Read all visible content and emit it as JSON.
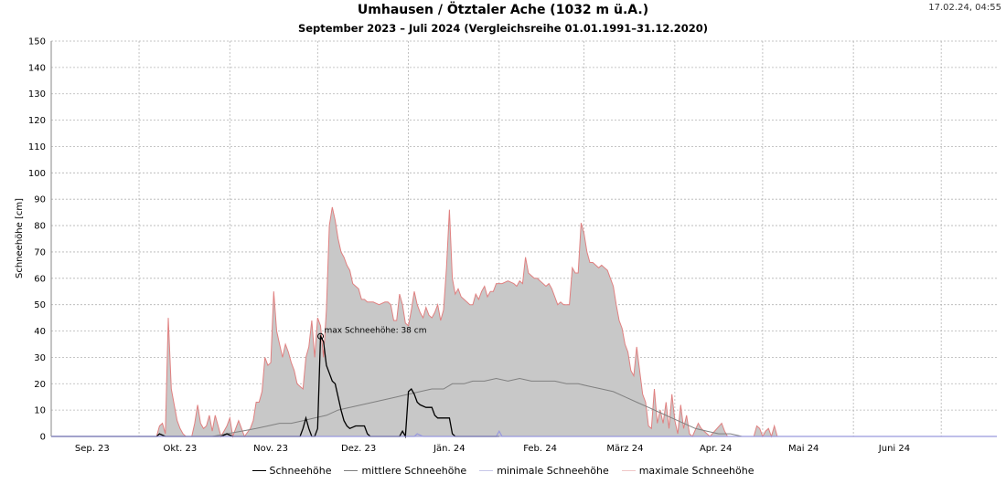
{
  "header": {
    "title": "Umhausen / Ötztaler Ache (1032 m ü.A.)",
    "subtitle": "September 2023 – Juli 2024 (Vergleichsreihe 01.01.1991–31.12.2020)",
    "timestamp": "17.02.24, 04:55"
  },
  "chart_data": {
    "type": "area",
    "ylabel": "Schneehöhe [cm]",
    "ylim": [
      0,
      150
    ],
    "yticks": [
      0,
      10,
      20,
      30,
      40,
      50,
      60,
      70,
      80,
      90,
      100,
      110,
      120,
      130,
      140,
      150
    ],
    "xlim_days": [
      0,
      323
    ],
    "xticks": [
      {
        "day": 14,
        "label": "Sep. 23"
      },
      {
        "day": 44,
        "label": "Okt. 23"
      },
      {
        "day": 75,
        "label": "Nov. 23"
      },
      {
        "day": 105,
        "label": "Dez. 23"
      },
      {
        "day": 136,
        "label": "Jän. 24"
      },
      {
        "day": 167,
        "label": "Feb. 24"
      },
      {
        "day": 196,
        "label": "März 24"
      },
      {
        "day": 227,
        "label": "Apr. 24"
      },
      {
        "day": 257,
        "label": "Mai 24"
      },
      {
        "day": 288,
        "label": "Juni 24"
      }
    ],
    "grid": true,
    "legend_position": "bottom",
    "annotation": {
      "day": 92,
      "value": 38,
      "text": "max Schneehöhe: 38 cm"
    },
    "colors": {
      "schneehoehe": "#000000",
      "mittlere": "#808080",
      "minimale": "#9999dd",
      "maximale": "#e08080",
      "area_fill": "#c8c8c8"
    },
    "series": [
      {
        "name": "Schneehöhe",
        "points": [
          [
            0,
            0
          ],
          [
            36,
            0
          ],
          [
            37,
            1
          ],
          [
            39,
            0
          ],
          [
            58,
            0
          ],
          [
            60,
            1
          ],
          [
            62,
            0
          ],
          [
            85,
            0
          ],
          [
            86,
            3
          ],
          [
            87,
            7
          ],
          [
            88,
            3
          ],
          [
            89,
            0
          ],
          [
            90,
            0
          ],
          [
            91,
            3
          ],
          [
            92,
            38
          ],
          [
            93,
            36
          ],
          [
            94,
            27
          ],
          [
            95,
            24
          ],
          [
            96,
            21
          ],
          [
            97,
            20
          ],
          [
            98,
            15
          ],
          [
            99,
            10
          ],
          [
            100,
            6
          ],
          [
            101,
            4
          ],
          [
            102,
            3
          ],
          [
            104,
            4
          ],
          [
            106,
            4
          ],
          [
            107,
            4
          ],
          [
            108,
            1
          ],
          [
            109,
            0
          ],
          [
            119,
            0
          ],
          [
            120,
            2
          ],
          [
            121,
            0
          ],
          [
            122,
            17
          ],
          [
            123,
            18
          ],
          [
            124,
            16
          ],
          [
            125,
            13
          ],
          [
            126,
            12
          ],
          [
            128,
            11
          ],
          [
            130,
            11
          ],
          [
            131,
            8
          ],
          [
            132,
            7
          ],
          [
            136,
            7
          ],
          [
            137,
            1
          ],
          [
            138,
            0
          ],
          [
            153,
            0
          ]
        ]
      },
      {
        "name": "mittlere Schneehöhe",
        "points": [
          [
            0,
            0
          ],
          [
            55,
            0
          ],
          [
            60,
            1
          ],
          [
            65,
            2
          ],
          [
            70,
            3
          ],
          [
            74,
            4
          ],
          [
            78,
            5
          ],
          [
            82,
            5
          ],
          [
            86,
            6
          ],
          [
            90,
            7
          ],
          [
            94,
            8
          ],
          [
            98,
            10
          ],
          [
            102,
            11
          ],
          [
            106,
            12
          ],
          [
            110,
            13
          ],
          [
            114,
            14
          ],
          [
            118,
            15
          ],
          [
            122,
            16
          ],
          [
            126,
            17
          ],
          [
            130,
            18
          ],
          [
            134,
            18
          ],
          [
            137,
            20
          ],
          [
            141,
            20
          ],
          [
            144,
            21
          ],
          [
            148,
            21
          ],
          [
            152,
            22
          ],
          [
            156,
            21
          ],
          [
            160,
            22
          ],
          [
            164,
            21
          ],
          [
            168,
            21
          ],
          [
            172,
            21
          ],
          [
            176,
            20
          ],
          [
            180,
            20
          ],
          [
            184,
            19
          ],
          [
            188,
            18
          ],
          [
            192,
            17
          ],
          [
            196,
            15
          ],
          [
            200,
            13
          ],
          [
            204,
            11
          ],
          [
            208,
            9
          ],
          [
            212,
            7
          ],
          [
            216,
            5
          ],
          [
            220,
            3
          ],
          [
            224,
            2
          ],
          [
            228,
            1
          ],
          [
            232,
            1
          ],
          [
            236,
            0
          ],
          [
            323,
            0
          ]
        ]
      },
      {
        "name": "minimale Schneehöhe",
        "points": [
          [
            0,
            0
          ],
          [
            124,
            0
          ],
          [
            125,
            1
          ],
          [
            127,
            0
          ],
          [
            152,
            0
          ],
          [
            153,
            2
          ],
          [
            154,
            0
          ],
          [
            323,
            0
          ]
        ]
      },
      {
        "name": "maximale Schneehöhe",
        "points": [
          [
            0,
            0
          ],
          [
            36,
            0
          ],
          [
            37,
            4
          ],
          [
            38,
            5
          ],
          [
            39,
            1
          ],
          [
            40,
            45
          ],
          [
            41,
            18
          ],
          [
            42,
            12
          ],
          [
            43,
            6
          ],
          [
            44,
            3
          ],
          [
            45,
            1
          ],
          [
            46,
            0
          ],
          [
            48,
            0
          ],
          [
            49,
            5
          ],
          [
            50,
            12
          ],
          [
            51,
            5
          ],
          [
            52,
            3
          ],
          [
            53,
            4
          ],
          [
            54,
            8
          ],
          [
            55,
            2
          ],
          [
            56,
            8
          ],
          [
            57,
            4
          ],
          [
            58,
            0
          ],
          [
            60,
            4
          ],
          [
            61,
            7
          ],
          [
            62,
            0
          ],
          [
            64,
            6
          ],
          [
            65,
            3
          ],
          [
            66,
            0
          ],
          [
            68,
            3
          ],
          [
            69,
            6
          ],
          [
            70,
            13
          ],
          [
            71,
            13
          ],
          [
            72,
            17
          ],
          [
            73,
            30
          ],
          [
            74,
            27
          ],
          [
            75,
            28
          ],
          [
            76,
            55
          ],
          [
            77,
            40
          ],
          [
            78,
            35
          ],
          [
            79,
            30
          ],
          [
            80,
            35
          ],
          [
            81,
            32
          ],
          [
            82,
            28
          ],
          [
            83,
            25
          ],
          [
            84,
            20
          ],
          [
            85,
            19
          ],
          [
            86,
            18
          ],
          [
            87,
            30
          ],
          [
            88,
            34
          ],
          [
            89,
            44
          ],
          [
            90,
            30
          ],
          [
            91,
            45
          ],
          [
            92,
            42
          ],
          [
            93,
            30
          ],
          [
            94,
            48
          ],
          [
            95,
            80
          ],
          [
            96,
            87
          ],
          [
            97,
            82
          ],
          [
            98,
            75
          ],
          [
            99,
            70
          ],
          [
            100,
            68
          ],
          [
            101,
            65
          ],
          [
            102,
            63
          ],
          [
            103,
            58
          ],
          [
            104,
            57
          ],
          [
            105,
            56
          ],
          [
            106,
            52
          ],
          [
            107,
            52
          ],
          [
            108,
            51
          ],
          [
            110,
            51
          ],
          [
            112,
            50
          ],
          [
            114,
            51
          ],
          [
            115,
            51
          ],
          [
            116,
            50
          ],
          [
            117,
            44
          ],
          [
            118,
            44
          ],
          [
            119,
            54
          ],
          [
            120,
            50
          ],
          [
            121,
            43
          ],
          [
            122,
            42
          ],
          [
            123,
            48
          ],
          [
            124,
            55
          ],
          [
            125,
            50
          ],
          [
            126,
            47
          ],
          [
            127,
            45
          ],
          [
            128,
            49
          ],
          [
            129,
            46
          ],
          [
            130,
            45
          ],
          [
            131,
            47
          ],
          [
            132,
            50
          ],
          [
            133,
            44
          ],
          [
            134,
            48
          ],
          [
            135,
            64
          ],
          [
            136,
            86
          ],
          [
            137,
            60
          ],
          [
            138,
            54
          ],
          [
            139,
            56
          ],
          [
            140,
            53
          ],
          [
            141,
            52
          ],
          [
            142,
            51
          ],
          [
            143,
            50
          ],
          [
            144,
            50
          ],
          [
            145,
            54
          ],
          [
            146,
            52
          ],
          [
            147,
            55
          ],
          [
            148,
            57
          ],
          [
            149,
            53
          ],
          [
            150,
            55
          ],
          [
            151,
            55
          ],
          [
            152,
            58
          ],
          [
            154,
            58
          ],
          [
            156,
            59
          ],
          [
            158,
            58
          ],
          [
            159,
            57
          ],
          [
            160,
            59
          ],
          [
            161,
            58
          ],
          [
            162,
            68
          ],
          [
            163,
            62
          ],
          [
            164,
            61
          ],
          [
            165,
            60
          ],
          [
            166,
            60
          ],
          [
            167,
            59
          ],
          [
            168,
            58
          ],
          [
            169,
            57
          ],
          [
            170,
            58
          ],
          [
            171,
            56
          ],
          [
            172,
            53
          ],
          [
            173,
            50
          ],
          [
            174,
            51
          ],
          [
            175,
            50
          ],
          [
            176,
            50
          ],
          [
            177,
            50
          ],
          [
            178,
            64
          ],
          [
            179,
            62
          ],
          [
            180,
            62
          ],
          [
            181,
            81
          ],
          [
            182,
            77
          ],
          [
            183,
            70
          ],
          [
            184,
            66
          ],
          [
            185,
            66
          ],
          [
            186,
            65
          ],
          [
            187,
            64
          ],
          [
            188,
            65
          ],
          [
            189,
            64
          ],
          [
            190,
            63
          ],
          [
            191,
            60
          ],
          [
            192,
            57
          ],
          [
            193,
            50
          ],
          [
            194,
            44
          ],
          [
            195,
            41
          ],
          [
            196,
            35
          ],
          [
            197,
            32
          ],
          [
            198,
            25
          ],
          [
            199,
            23
          ],
          [
            200,
            34
          ],
          [
            201,
            25
          ],
          [
            202,
            16
          ],
          [
            203,
            13
          ],
          [
            204,
            4
          ],
          [
            205,
            3
          ],
          [
            206,
            18
          ],
          [
            207,
            5
          ],
          [
            208,
            10
          ],
          [
            209,
            5
          ],
          [
            210,
            13
          ],
          [
            211,
            3
          ],
          [
            212,
            16
          ],
          [
            213,
            6
          ],
          [
            214,
            1
          ],
          [
            215,
            12
          ],
          [
            216,
            3
          ],
          [
            217,
            8
          ],
          [
            218,
            1
          ],
          [
            219,
            0
          ],
          [
            221,
            5
          ],
          [
            222,
            3
          ],
          [
            223,
            2
          ],
          [
            224,
            1
          ],
          [
            225,
            0
          ],
          [
            229,
            5
          ],
          [
            230,
            2
          ],
          [
            231,
            0
          ],
          [
            240,
            0
          ],
          [
            241,
            4
          ],
          [
            242,
            3
          ],
          [
            243,
            0
          ],
          [
            244,
            2
          ],
          [
            245,
            3
          ],
          [
            246,
            0
          ],
          [
            247,
            4
          ],
          [
            248,
            0
          ],
          [
            323,
            0
          ]
        ]
      }
    ]
  },
  "legend": {
    "items": [
      {
        "label": "Schneehöhe",
        "color": "#000000"
      },
      {
        "label": "mittlere Schneehöhe",
        "color": "#808080"
      },
      {
        "label": "minimale Schneehöhe",
        "color": "#9999dd"
      },
      {
        "label": "maximale Schneehöhe",
        "color": "#e08080"
      }
    ]
  }
}
